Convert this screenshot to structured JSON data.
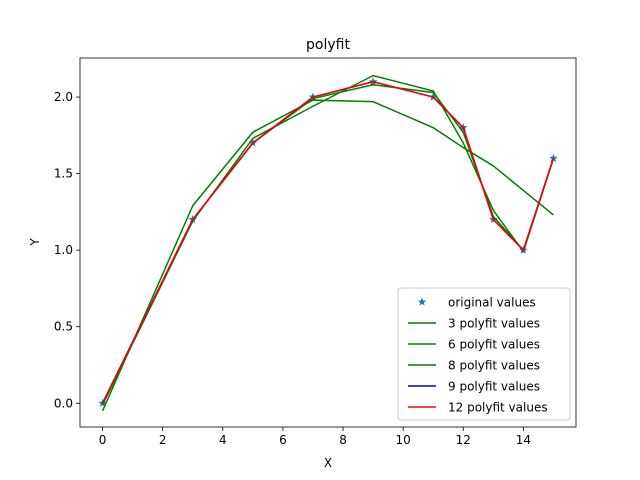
{
  "chart_data": {
    "type": "line",
    "title": "polyfit",
    "xlabel": "X",
    "ylabel": "Y",
    "xlim": [
      -0.75,
      15.75
    ],
    "ylim": [
      -0.155,
      2.255
    ],
    "xticks": [
      0,
      2,
      4,
      6,
      8,
      10,
      12,
      14
    ],
    "yticks": [
      0.0,
      0.5,
      1.0,
      1.5,
      2.0
    ],
    "ytick_labels": [
      "0.0",
      "0.5",
      "1.0",
      "1.5",
      "2.0"
    ],
    "grid": false,
    "legend_position": "lower-right",
    "series": [
      {
        "name": "original values",
        "style": "marker",
        "color": "#1f77b4",
        "x": [
          0,
          3,
          5,
          7,
          9,
          11,
          12,
          13,
          14,
          15
        ],
        "y": [
          0.0,
          1.2,
          1.7,
          2.0,
          2.1,
          2.0,
          1.8,
          1.2,
          1.0,
          1.6
        ]
      },
      {
        "name": "3 polyfit values",
        "style": "line",
        "color": "#008000",
        "x": [
          0,
          3,
          5,
          7,
          9,
          11,
          12,
          13,
          14,
          15
        ],
        "y": [
          -0.05,
          1.29,
          1.77,
          1.98,
          1.97,
          1.8,
          1.67,
          1.55,
          1.39,
          1.23
        ]
      },
      {
        "name": "6 polyfit values",
        "style": "line",
        "color": "#008000",
        "x": [
          0,
          3,
          5,
          7,
          9,
          11,
          12,
          13,
          14,
          15
        ],
        "y": [
          -0.01,
          1.19,
          1.73,
          1.94,
          2.14,
          2.04,
          1.7,
          1.26,
          0.99,
          1.6
        ]
      },
      {
        "name": "8 polyfit values",
        "style": "line",
        "color": "#008000",
        "x": [
          0,
          3,
          5,
          7,
          9,
          11,
          12,
          13,
          14,
          15
        ],
        "y": [
          0.0,
          1.2,
          1.7,
          1.99,
          2.08,
          2.03,
          1.77,
          1.22,
          1.0,
          1.6
        ]
      },
      {
        "name": "9 polyfit values",
        "style": "line",
        "color": "#0000cc",
        "x": [
          0,
          3,
          5,
          7,
          9,
          11,
          12,
          13,
          14,
          15
        ],
        "y": [
          0.0,
          1.2,
          1.7,
          2.0,
          2.1,
          2.0,
          1.8,
          1.2,
          1.0,
          1.6
        ]
      },
      {
        "name": "12 polyfit values",
        "style": "line",
        "color": "#ff0000",
        "x": [
          0,
          3,
          5,
          7,
          9,
          11,
          12,
          13,
          14,
          15
        ],
        "y": [
          0.0,
          1.2,
          1.7,
          2.0,
          2.1,
          2.0,
          1.8,
          1.2,
          1.0,
          1.6
        ]
      }
    ]
  }
}
